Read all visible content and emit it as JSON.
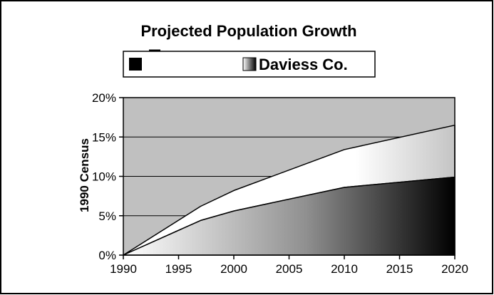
{
  "chart_data": {
    "type": "area",
    "title": "Projected Population Growth",
    "xlabel": "",
    "ylabel": "1990 Census",
    "x": [
      1990,
      1997,
      2000,
      2010,
      2020
    ],
    "xticks": [
      "1990",
      "1995",
      "2000",
      "2005",
      "2010",
      "2015",
      "2020"
    ],
    "yticks": [
      "0%",
      "5%",
      "10%",
      "15%",
      "20%"
    ],
    "xlim": [
      1990,
      2020
    ],
    "ylim": [
      0,
      20
    ],
    "stacked": true,
    "grid": "horizontal",
    "legend_position": "top",
    "series": [
      {
        "name": "Daviess Co.",
        "values": [
          0,
          4.4,
          5.6,
          8.6,
          9.9
        ],
        "color": "#4a4a4a"
      },
      {
        "name": "",
        "values": [
          0,
          1.8,
          2.6,
          4.8,
          6.6
        ],
        "color": "#e8e8e8"
      }
    ],
    "colors": {
      "plot_background": "#c0c0c0",
      "frame": "#000000"
    }
  }
}
